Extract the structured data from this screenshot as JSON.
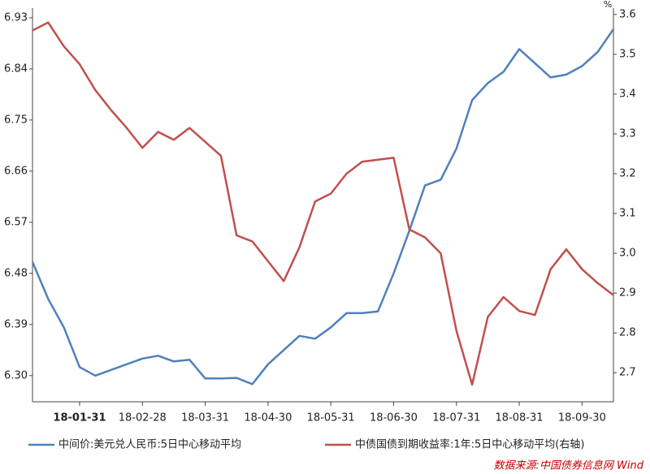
{
  "chart_data": {
    "type": "line",
    "unit_label": "%",
    "source": "数据来源:中国债券信息网 Wind",
    "categories": [
      null,
      null,
      null,
      "18-01-31",
      null,
      null,
      null,
      "18-02-28",
      null,
      null,
      null,
      "18-03-31",
      null,
      null,
      null,
      "18-04-30",
      null,
      null,
      null,
      "18-05-31",
      null,
      null,
      null,
      "18-06-30",
      null,
      null,
      null,
      "18-07-31",
      null,
      null,
      null,
      "18-08-31",
      null,
      null,
      null,
      "18-09-30",
      null,
      null
    ],
    "series": [
      {
        "name": "中间价:美元兑人民币:5日中心移动平均",
        "color": "#4f81bd",
        "axis": "y",
        "values": [
          6.5,
          6.435,
          6.385,
          6.315,
          6.3,
          6.31,
          6.32,
          6.33,
          6.335,
          6.325,
          6.328,
          6.295,
          6.295,
          6.296,
          6.285,
          6.32,
          6.345,
          6.37,
          6.365,
          6.385,
          6.41,
          6.41,
          6.413,
          6.48,
          6.555,
          6.635,
          6.645,
          6.7,
          6.785,
          6.815,
          6.835,
          6.875,
          6.85,
          6.825,
          6.83,
          6.845,
          6.87,
          6.91
        ]
      },
      {
        "name": "中债国债到期收益率:1年:5日中心移动平均(右轴)",
        "color": "#c0504d",
        "axis": "y2",
        "values": [
          3.56,
          3.58,
          3.52,
          3.475,
          3.41,
          3.36,
          3.315,
          3.265,
          3.305,
          3.285,
          3.315,
          3.28,
          3.245,
          3.045,
          3.03,
          2.98,
          2.93,
          3.015,
          3.13,
          3.15,
          3.2,
          3.23,
          3.235,
          3.24,
          3.06,
          3.04,
          3.0,
          2.805,
          2.67,
          2.84,
          2.89,
          2.855,
          2.845,
          2.96,
          3.01,
          2.96,
          2.925,
          2.895
        ]
      }
    ],
    "ylim": [
      6.254,
      6.947
    ],
    "yticks": [
      {
        "value": 6.3,
        "label": "6.30"
      },
      6.39,
      6.48,
      6.57,
      6.66,
      6.75,
      6.84,
      6.93
    ],
    "y2lim": [
      2.627,
      3.616
    ],
    "y2ticks": [
      2.7,
      2.8,
      2.9,
      {
        "value": 3,
        "label": "3.0"
      },
      3.1,
      3.2,
      3.3,
      3.4,
      3.5,
      3.6
    ],
    "legend": "bottom"
  }
}
